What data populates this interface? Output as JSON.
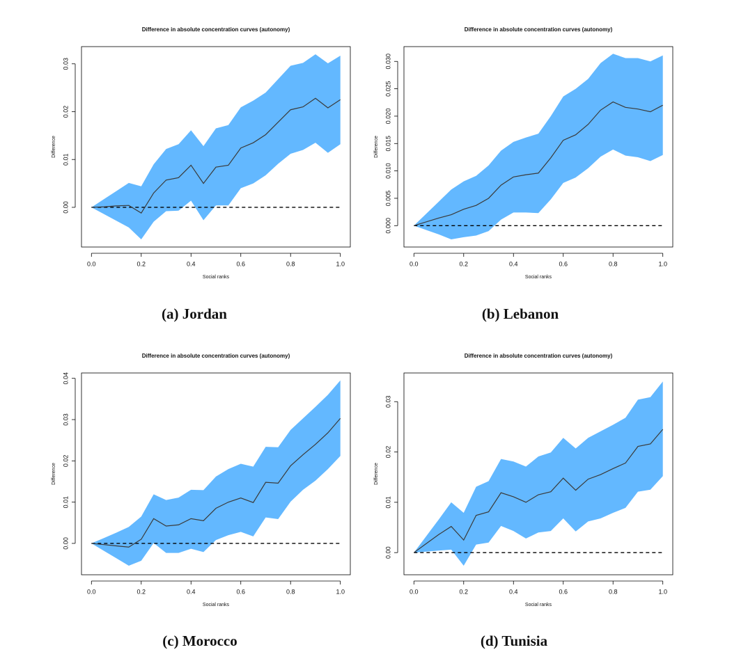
{
  "chart_data": [
    {
      "type": "line",
      "title": "Difference in absolute concentration curves (autonomy)",
      "xlabel": "Social ranks",
      "ylabel": "Difference",
      "caption": "(a) Jordan",
      "x": [
        0,
        0.05,
        0.1,
        0.15,
        0.2,
        0.25,
        0.3,
        0.35,
        0.4,
        0.45,
        0.5,
        0.55,
        0.6,
        0.65,
        0.7,
        0.75,
        0.8,
        0.85,
        0.9,
        0.95,
        1
      ],
      "series": [
        {
          "color": "#3a3a3a",
          "band_color": "#63b8ff",
          "values": [
            0,
            0.0001,
            0.0003,
            0.0004,
            -0.0012,
            0.003,
            0.0057,
            0.0062,
            0.0088,
            0.005,
            0.0084,
            0.0088,
            0.0124,
            0.0135,
            0.0152,
            0.0178,
            0.0204,
            0.021,
            0.0228,
            0.0208,
            0.0225
          ],
          "upper": [
            0,
            0.0017,
            0.0034,
            0.0051,
            0.0044,
            0.009,
            0.0122,
            0.0132,
            0.0161,
            0.0128,
            0.0165,
            0.0172,
            0.0209,
            0.0223,
            0.024,
            0.0268,
            0.0296,
            0.0302,
            0.032,
            0.0301,
            0.0317
          ],
          "lower": [
            0,
            -0.0014,
            -0.0028,
            -0.0042,
            -0.0067,
            -0.003,
            -0.0008,
            -0.0007,
            0.0014,
            -0.0027,
            0.0004,
            0.0004,
            0.004,
            0.005,
            0.0067,
            0.0091,
            0.0112,
            0.012,
            0.0135,
            0.0114,
            0.0132
          ]
        }
      ],
      "hline": 0,
      "xlim": [
        -0.04,
        1.04
      ],
      "ylim": [
        -0.0083,
        0.0336
      ],
      "xticks": [
        {
          "value": 0,
          "label": "0.0"
        },
        {
          "value": 0.2,
          "label": "0.2"
        },
        {
          "value": 0.4,
          "label": "0.4"
        },
        {
          "value": 0.6,
          "label": "0.6"
        },
        {
          "value": 0.8,
          "label": "0.8"
        },
        {
          "value": 1,
          "label": "1.0"
        }
      ],
      "yticks": [
        {
          "value": 0,
          "label": "0.00"
        },
        {
          "value": 0.01,
          "label": "0.01"
        },
        {
          "value": 0.02,
          "label": "0.02"
        },
        {
          "value": 0.03,
          "label": "0.03"
        }
      ]
    },
    {
      "type": "line",
      "title": "Difference in absolute concentration curves (autonomy)",
      "xlabel": "Social ranks",
      "ylabel": "Difference",
      "caption": "(b) Lebanon",
      "x": [
        0,
        0.05,
        0.1,
        0.15,
        0.2,
        0.25,
        0.3,
        0.35,
        0.4,
        0.45,
        0.5,
        0.55,
        0.6,
        0.65,
        0.7,
        0.75,
        0.8,
        0.85,
        0.9,
        0.95,
        1
      ],
      "series": [
        {
          "color": "#3a3a3a",
          "band_color": "#63b8ff",
          "values": [
            0,
            0.0007,
            0.0014,
            0.002,
            0.003,
            0.0037,
            0.005,
            0.0074,
            0.0089,
            0.0093,
            0.0096,
            0.0124,
            0.0156,
            0.0166,
            0.0185,
            0.0211,
            0.0226,
            0.0216,
            0.0213,
            0.0208,
            0.022
          ],
          "upper": [
            0,
            0.0022,
            0.0044,
            0.0066,
            0.0081,
            0.0091,
            0.011,
            0.0137,
            0.0153,
            0.0161,
            0.0168,
            0.02,
            0.0236,
            0.025,
            0.0268,
            0.0297,
            0.0314,
            0.0306,
            0.0306,
            0.03,
            0.0311
          ],
          "lower": [
            0,
            -0.0008,
            -0.0016,
            -0.0025,
            -0.0021,
            -0.0018,
            -0.001,
            0.0011,
            0.0024,
            0.0024,
            0.0023,
            0.0048,
            0.0078,
            0.0088,
            0.0105,
            0.0126,
            0.0139,
            0.0128,
            0.0125,
            0.0118,
            0.0129
          ]
        }
      ],
      "hline": 0,
      "xlim": [
        -0.04,
        1.04
      ],
      "ylim": [
        -0.0039,
        0.0327
      ],
      "xticks": [
        {
          "value": 0,
          "label": "0.0"
        },
        {
          "value": 0.2,
          "label": "0.2"
        },
        {
          "value": 0.4,
          "label": "0.4"
        },
        {
          "value": 0.6,
          "label": "0.6"
        },
        {
          "value": 0.8,
          "label": "0.8"
        },
        {
          "value": 1,
          "label": "1.0"
        }
      ],
      "yticks": [
        {
          "value": 0,
          "label": "0.000"
        },
        {
          "value": 0.005,
          "label": "0.005"
        },
        {
          "value": 0.01,
          "label": "0.010"
        },
        {
          "value": 0.015,
          "label": "0.015"
        },
        {
          "value": 0.02,
          "label": "0.020"
        },
        {
          "value": 0.025,
          "label": "0.025"
        },
        {
          "value": 0.03,
          "label": "0.030"
        }
      ]
    },
    {
      "type": "line",
      "title": "Difference in absolute concentration curves (autonomy)",
      "xlabel": "Social ranks",
      "ylabel": "Difference",
      "caption": "(c) Morocco",
      "x": [
        0,
        0.05,
        0.1,
        0.15,
        0.2,
        0.25,
        0.3,
        0.35,
        0.4,
        0.45,
        0.5,
        0.55,
        0.6,
        0.65,
        0.7,
        0.75,
        0.8,
        0.85,
        0.9,
        0.95,
        1
      ],
      "series": [
        {
          "color": "#3a3a3a",
          "band_color": "#63b8ff",
          "values": [
            0,
            -0.0003,
            -0.0006,
            -0.0009,
            0.001,
            0.006,
            0.0042,
            0.0045,
            0.006,
            0.0055,
            0.0085,
            0.01,
            0.011,
            0.0099,
            0.0148,
            0.0146,
            0.0188,
            0.0215,
            0.024,
            0.0268,
            0.0303
          ],
          "upper": [
            0,
            0.0013,
            0.0026,
            0.004,
            0.0065,
            0.0119,
            0.0105,
            0.0111,
            0.013,
            0.0129,
            0.0162,
            0.018,
            0.0193,
            0.0186,
            0.0234,
            0.0233,
            0.0275,
            0.0303,
            0.0331,
            0.036,
            0.0395
          ],
          "lower": [
            0,
            -0.0018,
            -0.0036,
            -0.0054,
            -0.0042,
            0.0001,
            -0.0023,
            -0.0023,
            -0.0013,
            -0.0021,
            0.0008,
            0.002,
            0.0028,
            0.0017,
            0.0063,
            0.0059,
            0.0101,
            0.013,
            0.0152,
            0.018,
            0.0212
          ]
        }
      ],
      "hline": 0,
      "xlim": [
        -0.04,
        1.04
      ],
      "ylim": [
        -0.0076,
        0.0413
      ],
      "xticks": [
        {
          "value": 0,
          "label": "0.0"
        },
        {
          "value": 0.2,
          "label": "0.2"
        },
        {
          "value": 0.4,
          "label": "0.4"
        },
        {
          "value": 0.6,
          "label": "0.6"
        },
        {
          "value": 0.8,
          "label": "0.8"
        },
        {
          "value": 1,
          "label": "1.0"
        }
      ],
      "yticks": [
        {
          "value": 0,
          "label": "0.00"
        },
        {
          "value": 0.01,
          "label": "0.01"
        },
        {
          "value": 0.02,
          "label": "0.02"
        },
        {
          "value": 0.03,
          "label": "0.03"
        },
        {
          "value": 0.04,
          "label": "0.04"
        }
      ]
    },
    {
      "type": "line",
      "title": "Difference in absolute concentration curves (autonomy)",
      "xlabel": "Social ranks",
      "ylabel": "Difference",
      "caption": "(d) Tunisia",
      "x": [
        0,
        0.05,
        0.1,
        0.15,
        0.2,
        0.25,
        0.3,
        0.35,
        0.4,
        0.45,
        0.5,
        0.55,
        0.6,
        0.65,
        0.7,
        0.75,
        0.8,
        0.85,
        0.9,
        0.95,
        1
      ],
      "series": [
        {
          "color": "#3a3a3a",
          "band_color": "#63b8ff",
          "values": [
            0,
            0.0018,
            0.0036,
            0.0052,
            0.0025,
            0.0074,
            0.0081,
            0.0119,
            0.0111,
            0.01,
            0.0115,
            0.0121,
            0.0148,
            0.0124,
            0.0146,
            0.0155,
            0.0167,
            0.0178,
            0.0211,
            0.0216,
            0.0245
          ],
          "upper": [
            0,
            0.0033,
            0.0066,
            0.01,
            0.0079,
            0.0131,
            0.0142,
            0.0186,
            0.0181,
            0.0171,
            0.0191,
            0.0199,
            0.0228,
            0.0207,
            0.0228,
            0.0241,
            0.0254,
            0.0268,
            0.0304,
            0.0309,
            0.034
          ],
          "lower": [
            0,
            0.0002,
            0.0004,
            0.0006,
            -0.0026,
            0.0016,
            0.002,
            0.0053,
            0.0043,
            0.0028,
            0.004,
            0.0043,
            0.0068,
            0.0042,
            0.0062,
            0.0068,
            0.0079,
            0.0089,
            0.0121,
            0.0125,
            0.0152
          ]
        }
      ],
      "hline": 0,
      "xlim": [
        -0.04,
        1.04
      ],
      "ylim": [
        -0.0044,
        0.0357
      ],
      "xticks": [
        {
          "value": 0,
          "label": "0.0"
        },
        {
          "value": 0.2,
          "label": "0.2"
        },
        {
          "value": 0.4,
          "label": "0.4"
        },
        {
          "value": 0.6,
          "label": "0.6"
        },
        {
          "value": 0.8,
          "label": "0.8"
        },
        {
          "value": 1,
          "label": "1.0"
        }
      ],
      "yticks": [
        {
          "value": 0,
          "label": "0.00"
        },
        {
          "value": 0.01,
          "label": "0.01"
        },
        {
          "value": 0.02,
          "label": "0.02"
        },
        {
          "value": 0.03,
          "label": "0.03"
        }
      ]
    }
  ]
}
